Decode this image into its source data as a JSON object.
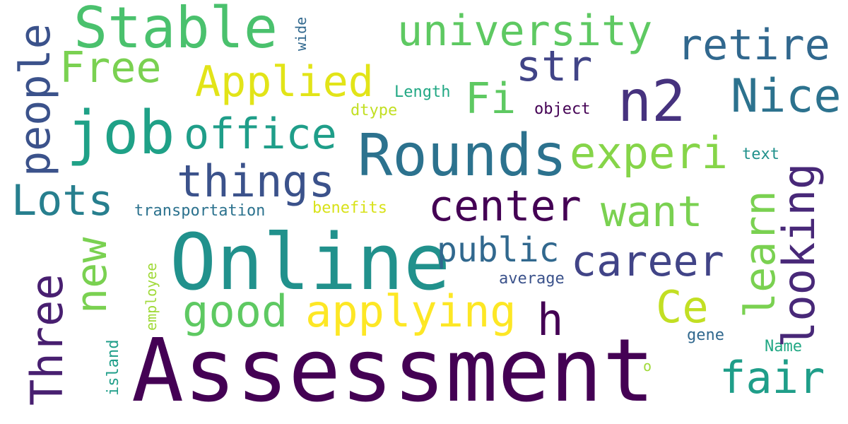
{
  "words": {
    "assessment": {
      "text": "Assessment",
      "color": "#440154"
    },
    "online": {
      "text": "Online",
      "color": "#21918c"
    },
    "rounds": {
      "text": "Rounds",
      "color": "#2c728e"
    },
    "stable": {
      "text": "Stable",
      "color": "#4ac16d"
    },
    "job": {
      "text": "job",
      "color": "#1fa187"
    },
    "n2": {
      "text": "n2",
      "color": "#46327e"
    },
    "university": {
      "text": "university",
      "color": "#5ec962"
    },
    "retire": {
      "text": "retire",
      "color": "#31688e"
    },
    "nice": {
      "text": "Nice",
      "color": "#2c728e"
    },
    "str": {
      "text": "str",
      "color": "#414487"
    },
    "free": {
      "text": "Free",
      "color": "#7ad151"
    },
    "applied": {
      "text": "Applied",
      "color": "#e2e418"
    },
    "fi": {
      "text": "Fi",
      "color": "#5ec962"
    },
    "office": {
      "text": "office",
      "color": "#1f9e89"
    },
    "experi": {
      "text": "experi",
      "color": "#86d549"
    },
    "things": {
      "text": "things",
      "color": "#3b528b"
    },
    "lots": {
      "text": "Lots",
      "color": "#277f8e"
    },
    "center": {
      "text": "center",
      "color": "#440154"
    },
    "want": {
      "text": "want",
      "color": "#7ad151"
    },
    "public": {
      "text": "public",
      "color": "#31688e"
    },
    "career": {
      "text": "career",
      "color": "#414487"
    },
    "good": {
      "text": "good",
      "color": "#5ec962"
    },
    "applying": {
      "text": "applying",
      "color": "#fde725"
    },
    "ce": {
      "text": "Ce",
      "color": "#c2df23"
    },
    "h": {
      "text": "h",
      "color": "#440154"
    },
    "fair": {
      "text": "fair",
      "color": "#1f9e89"
    },
    "people": {
      "text": "people",
      "color": "#3b528b"
    },
    "new": {
      "text": "new",
      "color": "#7ad151"
    },
    "three": {
      "text": "Three",
      "color": "#481f70"
    },
    "learn": {
      "text": "learn",
      "color": "#7ad151"
    },
    "looking": {
      "text": "looking",
      "color": "#482878"
    },
    "length": {
      "text": "Length",
      "color": "#22a884"
    },
    "dtype": {
      "text": "dtype",
      "color": "#c2df23"
    },
    "object": {
      "text": "object",
      "color": "#440154"
    },
    "text": {
      "text": "text",
      "color": "#21918c"
    },
    "transportation": {
      "text": "transportation",
      "color": "#2c728e"
    },
    "benefits": {
      "text": "benefits",
      "color": "#d8e219"
    },
    "average": {
      "text": "average",
      "color": "#3b528b"
    },
    "gene": {
      "text": "gene",
      "color": "#31688e"
    },
    "name": {
      "text": "Name",
      "color": "#22a884"
    },
    "o": {
      "text": "o",
      "color": "#a0da39"
    },
    "wide": {
      "text": "wide",
      "color": "#31688e"
    },
    "employee": {
      "text": "employee",
      "color": "#a0da39"
    },
    "island": {
      "text": "island",
      "color": "#1f9e89"
    }
  }
}
